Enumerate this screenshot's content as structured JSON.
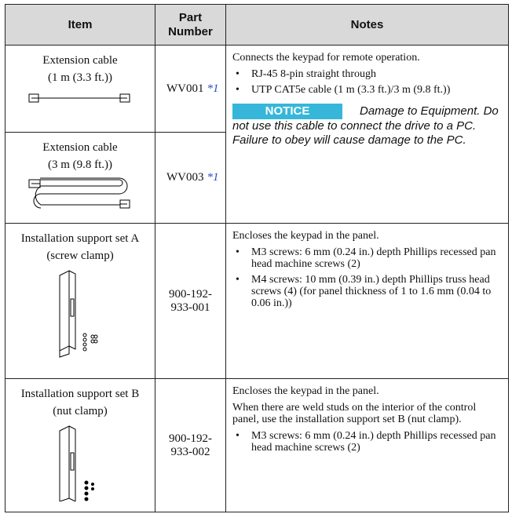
{
  "table": {
    "header": [
      "Item",
      "Part Number",
      "Notes"
    ],
    "rows": [
      {
        "item": [
          "Extension cable",
          "(1 m (3.3 ft.))"
        ],
        "part": "WV001",
        "footnote": "*1",
        "notes": {
          "text": "Connects the keypad for remote operation.",
          "bullets": [
            "RJ-45 8-pin straight through",
            "UTP CAT5e cable (1 m (3.3 ft.)/3 m (9.8 ft.))"
          ],
          "notice": {
            "label": "NOTICE",
            "text": "Damage to Equipment. Do not use this cable to connect the drive to a PC. Failure to obey will cause damage to the PC."
          }
        }
      },
      {
        "item": [
          "Extension cable",
          "(3 m (9.8 ft.))"
        ],
        "part": "WV003",
        "footnote": "*1"
      },
      {
        "item": [
          "Installation support set A",
          "(screw clamp)"
        ],
        "part": "900-192-933-001",
        "notes": {
          "text": "Encloses the keypad in the panel.",
          "bullets": [
            "M3 screws: 6 mm (0.24 in.) depth Phillips recessed pan head machine screws (2)",
            "M4 screws: 10 mm (0.39 in.) depth Phillips truss head screws (4) (for panel thickness of 1 to 1.6 mm (0.04 to 0.06 in.))"
          ]
        }
      },
      {
        "item": [
          "Installation support set B",
          "(nut clamp)"
        ],
        "part": "900-192-933-002",
        "notes": {
          "text": "Encloses the keypad in the panel.",
          "text2": "When there are weld studs on the interior of the control panel, use the installation support set B (nut clamp).",
          "bullets": [
            "M3 screws: 6 mm (0.24 in.) depth Phillips recessed pan head machine screws (2)"
          ]
        }
      }
    ]
  }
}
